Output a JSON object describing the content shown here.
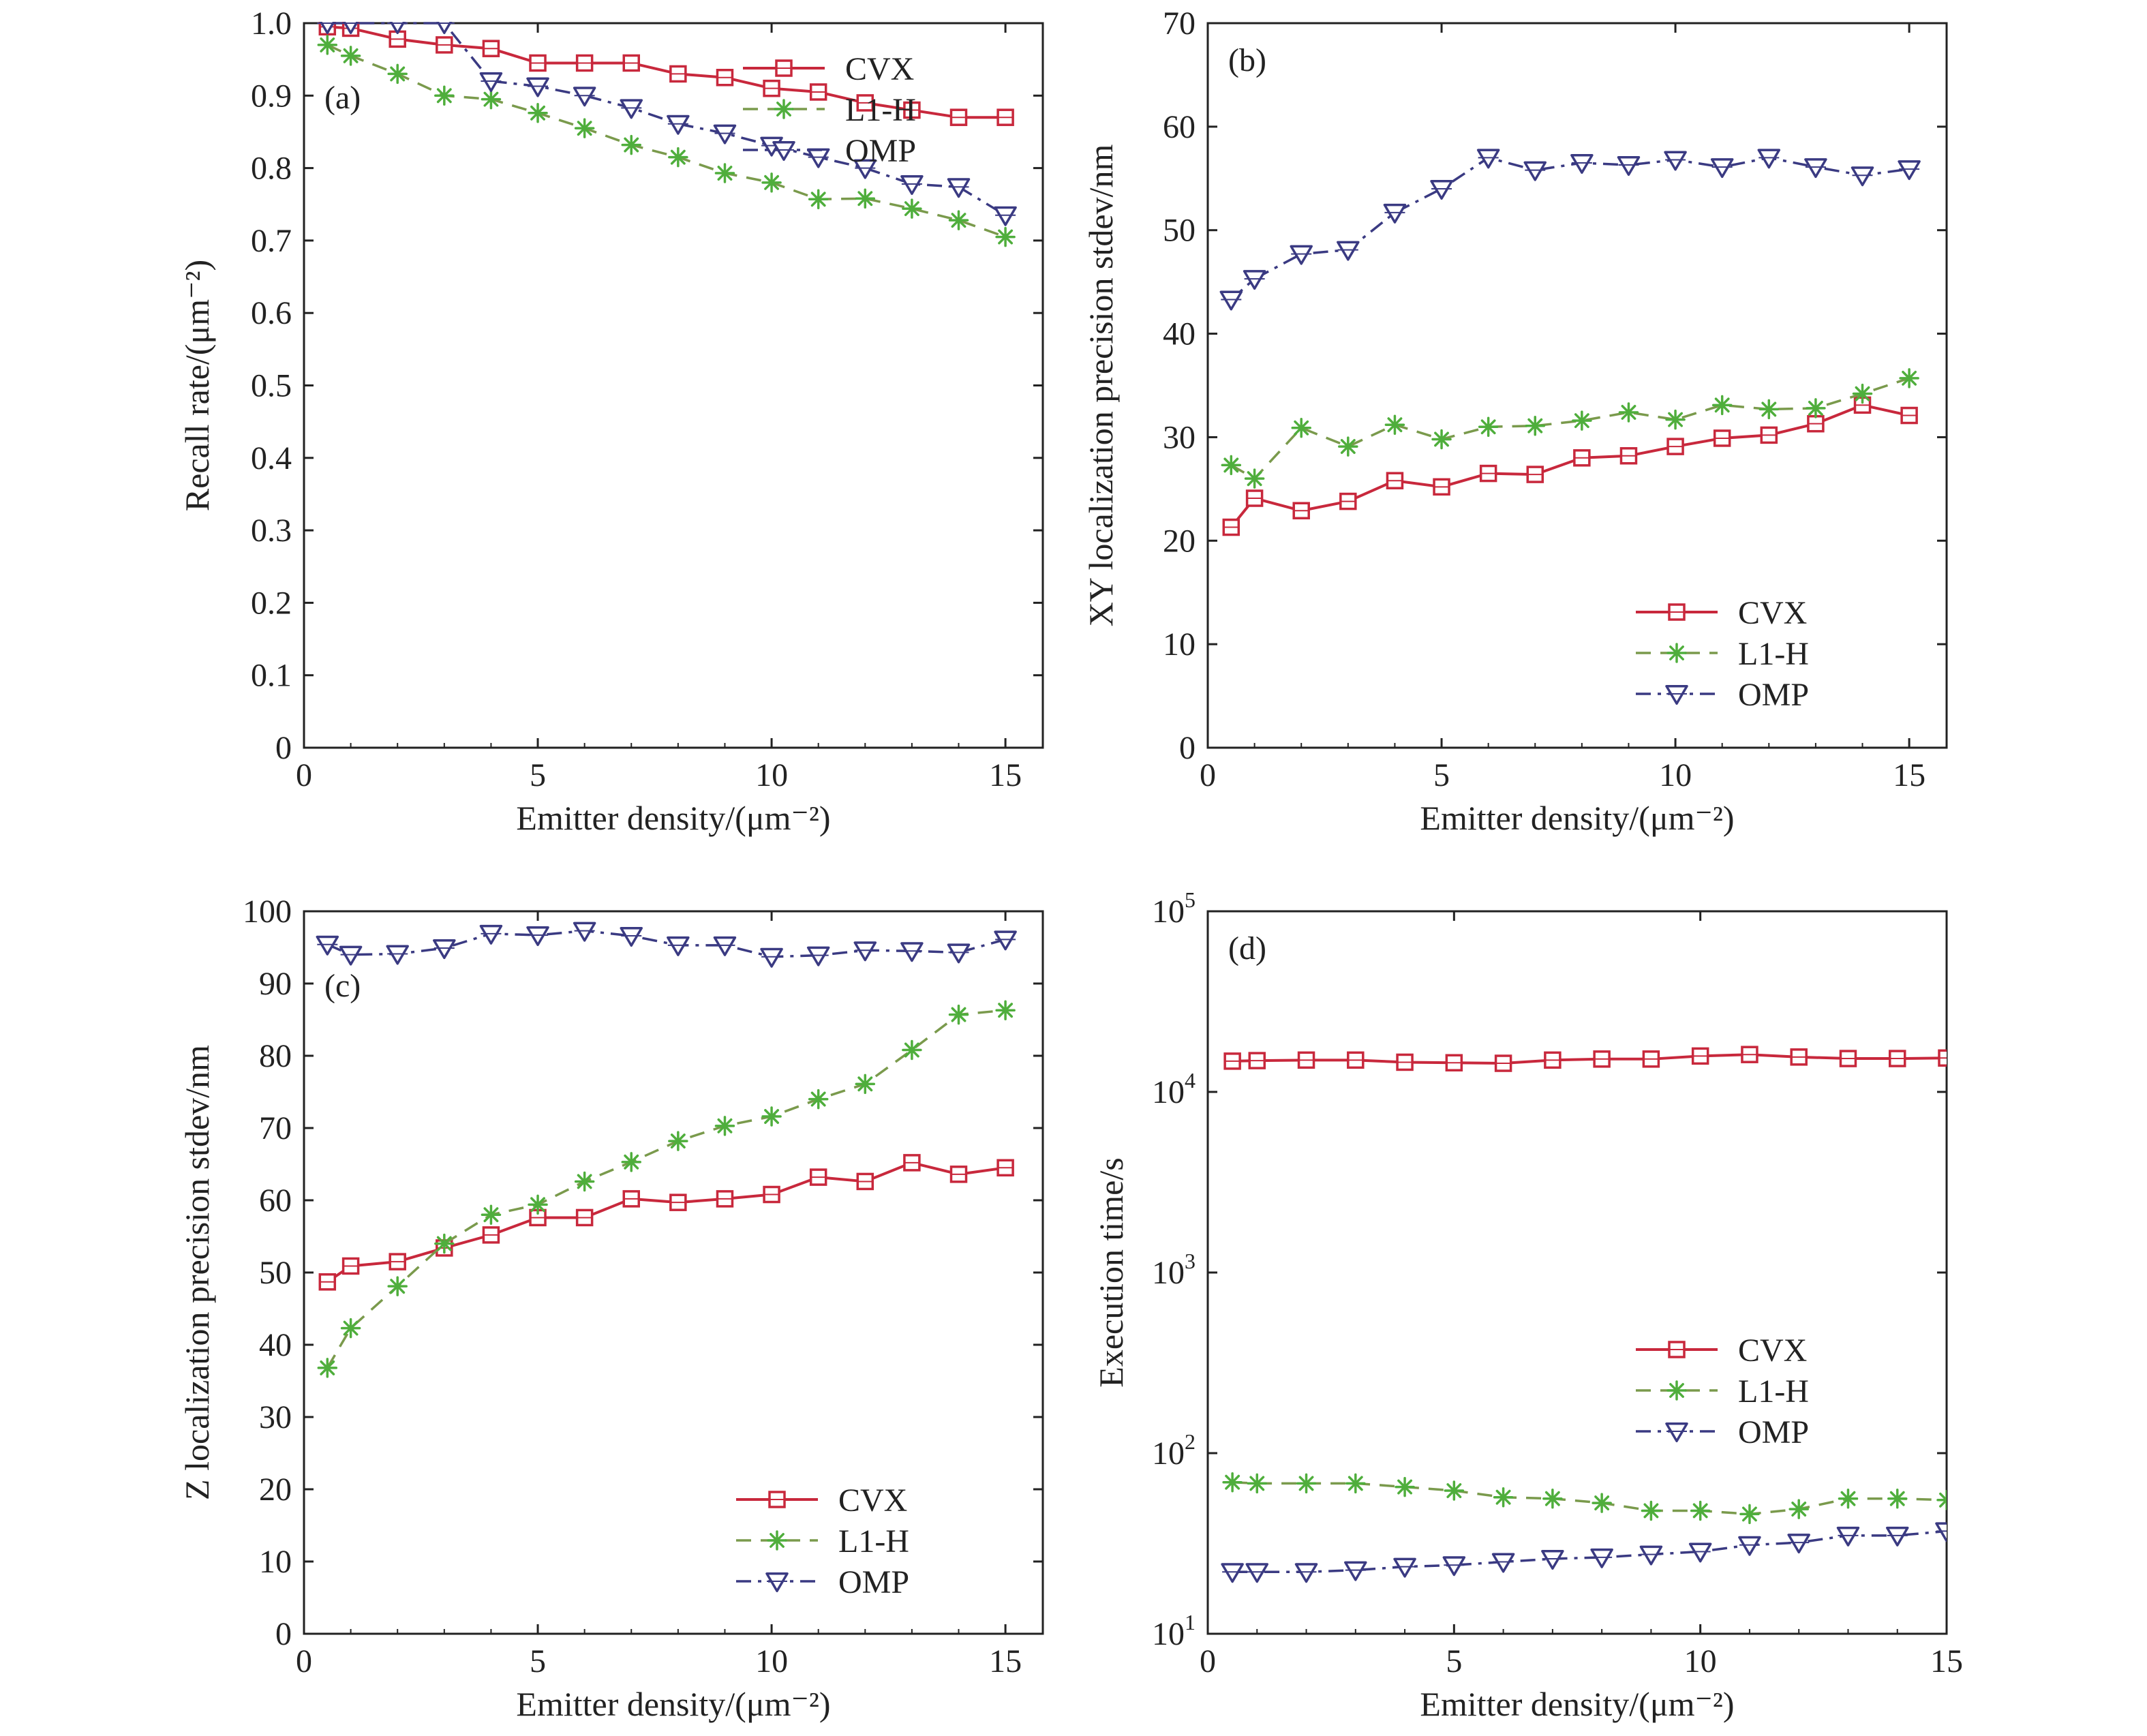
{
  "colors": {
    "cvx": "#c8283c",
    "l1h": "#4fae3c",
    "l1h_line": "#7a9a4c",
    "omp": "#3a3a82",
    "axis": "#222222"
  },
  "legend_labels": [
    "CVX",
    "L1-H",
    "OMP"
  ],
  "chart_data": [
    {
      "id": "a",
      "type": "line",
      "panel_label": "(a)",
      "xlabel": "Emitter density/(μm⁻²)",
      "ylabel": "Recall rate/(μm⁻²)",
      "xlim": [
        0,
        15.8
      ],
      "ylim": [
        0,
        1.0
      ],
      "xticks": [
        0,
        5,
        10,
        15
      ],
      "yticks": [
        0,
        0.1,
        0.2,
        0.3,
        0.4,
        0.5,
        0.6,
        0.7,
        0.8,
        0.9,
        1.0
      ],
      "ytick_labels": [
        "0",
        "0.1",
        "0.2",
        "0.3",
        "0.4",
        "0.5",
        "0.6",
        "0.7",
        "0.8",
        "0.9",
        "1.0"
      ],
      "yscale": "linear",
      "legend_position": "top-right",
      "x": [
        0.5,
        1,
        2,
        3,
        4,
        5,
        6,
        7,
        8,
        9,
        10,
        11,
        12,
        13,
        14,
        15
      ],
      "series": [
        {
          "name": "CVX",
          "values": [
            0.995,
            0.993,
            0.978,
            0.97,
            0.965,
            0.945,
            0.945,
            0.945,
            0.93,
            0.925,
            0.91,
            0.905,
            0.89,
            0.88,
            0.87,
            0.87
          ]
        },
        {
          "name": "L1-H",
          "values": [
            0.97,
            0.955,
            0.93,
            0.9,
            0.895,
            0.876,
            0.855,
            0.832,
            0.815,
            0.793,
            0.78,
            0.757,
            0.758,
            0.744,
            0.728,
            0.705
          ]
        },
        {
          "name": "OMP",
          "values": [
            1.0,
            1.0,
            1.0,
            1.0,
            0.92,
            0.913,
            0.9,
            0.883,
            0.861,
            0.848,
            0.831,
            0.815,
            0.8,
            0.778,
            0.774,
            0.735
          ]
        }
      ]
    },
    {
      "id": "b",
      "type": "line",
      "panel_label": "(b)",
      "xlabel": "Emitter density/(μm⁻²)",
      "ylabel": "XY localization precision stdev/nm",
      "xlim": [
        0,
        15.8
      ],
      "ylim": [
        0,
        70
      ],
      "xticks": [
        0,
        5,
        10,
        15
      ],
      "yticks": [
        0,
        10,
        20,
        30,
        40,
        50,
        60,
        70
      ],
      "ytick_labels": [
        "0",
        "10",
        "20",
        "30",
        "40",
        "50",
        "60",
        "70"
      ],
      "yscale": "linear",
      "legend_position": "bottom-right",
      "x": [
        0.5,
        1,
        2,
        3,
        4,
        5,
        6,
        7,
        8,
        9,
        10,
        11,
        12,
        13,
        14,
        15
      ],
      "series": [
        {
          "name": "CVX",
          "values": [
            21.3,
            24.1,
            22.9,
            23.8,
            25.8,
            25.2,
            26.5,
            26.4,
            28.0,
            28.2,
            29.1,
            29.9,
            30.2,
            31.3,
            33.1,
            32.1
          ]
        },
        {
          "name": "L1-H",
          "values": [
            27.3,
            26.0,
            30.9,
            29.1,
            31.2,
            29.8,
            31.0,
            31.1,
            31.6,
            32.4,
            31.7,
            33.1,
            32.7,
            32.8,
            34.2,
            35.7
          ]
        },
        {
          "name": "OMP",
          "values": [
            43.3,
            45.3,
            47.7,
            48.1,
            51.7,
            54.0,
            57.0,
            55.8,
            56.5,
            56.3,
            56.8,
            56.1,
            57.0,
            56.1,
            55.3,
            55.9
          ]
        }
      ]
    },
    {
      "id": "c",
      "type": "line",
      "panel_label": "(c)",
      "xlabel": "Emitter density/(μm⁻²)",
      "ylabel": "Z localization precision stdev/nm",
      "xlim": [
        0,
        15.8
      ],
      "ylim": [
        0,
        100
      ],
      "xticks": [
        0,
        5,
        10,
        15
      ],
      "yticks": [
        0,
        10,
        20,
        30,
        40,
        50,
        60,
        70,
        80,
        90,
        100
      ],
      "ytick_labels": [
        "0",
        "10",
        "20",
        "30",
        "40",
        "50",
        "60",
        "70",
        "80",
        "90",
        "100"
      ],
      "yscale": "linear",
      "legend_position": "bottom-right",
      "x": [
        0.5,
        1,
        2,
        3,
        4,
        5,
        6,
        7,
        8,
        9,
        10,
        11,
        12,
        13,
        14,
        15
      ],
      "series": [
        {
          "name": "CVX",
          "values": [
            48.7,
            50.9,
            51.5,
            53.4,
            55.2,
            57.6,
            57.6,
            60.2,
            59.7,
            60.2,
            60.8,
            63.2,
            62.6,
            65.2,
            63.6,
            64.5
          ]
        },
        {
          "name": "L1-H",
          "values": [
            36.8,
            42.3,
            48.1,
            54.0,
            58.0,
            59.4,
            62.6,
            65.3,
            68.2,
            70.3,
            71.6,
            74.0,
            76.1,
            80.8,
            85.7,
            86.3
          ]
        },
        {
          "name": "OMP",
          "values": [
            95.4,
            94.0,
            94.1,
            94.9,
            96.9,
            96.7,
            97.3,
            96.6,
            95.3,
            95.3,
            93.7,
            93.9,
            94.6,
            94.5,
            94.3,
            96.1
          ]
        }
      ]
    },
    {
      "id": "d",
      "type": "line",
      "panel_label": "(d)",
      "xlabel": "Emitter density/(μm⁻²)",
      "ylabel": "Execution time/s",
      "xlim": [
        0,
        15
      ],
      "ylim": [
        10,
        100000
      ],
      "xticks": [
        0,
        5,
        10,
        15
      ],
      "yticks": [
        10,
        100,
        1000,
        10000,
        100000
      ],
      "ytick_labels": [
        "10¹",
        "10²",
        "10³",
        "10⁴",
        "10⁵"
      ],
      "yscale": "log",
      "legend_position": "bottom-right",
      "x": [
        0.5,
        1,
        2,
        3,
        4,
        5,
        6,
        7,
        8,
        9,
        10,
        11,
        12,
        13,
        14,
        15
      ],
      "series": [
        {
          "name": "CVX",
          "values": [
            14800,
            14900,
            15000,
            15000,
            14600,
            14500,
            14400,
            15000,
            15200,
            15200,
            15800,
            16100,
            15600,
            15300,
            15300,
            15400
          ]
        },
        {
          "name": "L1-H",
          "values": [
            69,
            68,
            68,
            68,
            65,
            62,
            57,
            56,
            53,
            48,
            48,
            46,
            49,
            56,
            56,
            55
          ]
        },
        {
          "name": "OMP",
          "values": [
            22,
            22,
            22,
            22.5,
            23.5,
            24,
            25,
            26,
            26.5,
            27.5,
            28.5,
            31,
            32,
            35,
            35,
            37
          ]
        }
      ]
    }
  ]
}
